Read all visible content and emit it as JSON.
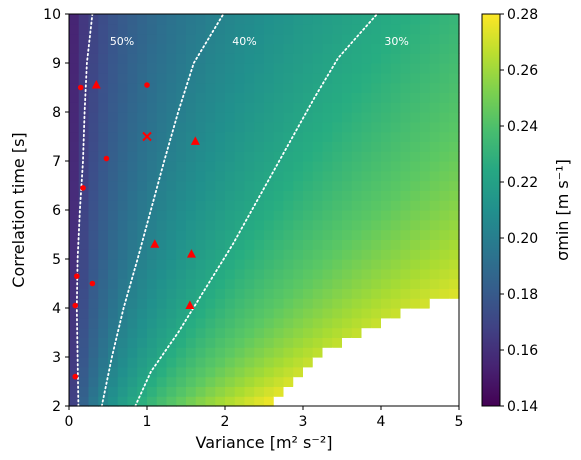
{
  "chart_data": {
    "type": "heatmap",
    "xlabel": "Variance [m² s⁻²]",
    "ylabel": "Correlation time [s]",
    "colorbar_label": "σmin [m s⁻¹]",
    "xlim": [
      0,
      5
    ],
    "ylim": [
      2,
      10
    ],
    "x_ticks": [
      "0",
      "1",
      "2",
      "3",
      "4",
      "5"
    ],
    "y_ticks": [
      "2",
      "3",
      "4",
      "5",
      "6",
      "7",
      "8",
      "9",
      "10"
    ],
    "clim": [
      0.14,
      0.28
    ],
    "colorbar_ticks": [
      "0.14",
      "0.16",
      "0.18",
      "0.20",
      "0.22",
      "0.24",
      "0.26",
      "0.28"
    ],
    "colormap": "viridis",
    "grid": {
      "x_cells": 40,
      "y_cells": 40,
      "white_region_boundary": [
        [
          5.0,
          4.3
        ],
        [
          4.2,
          3.9
        ],
        [
          3.3,
          3.1
        ],
        [
          2.5,
          2.0
        ]
      ]
    },
    "contours": [
      {
        "label": "50%",
        "color": "#ffffff",
        "style": "dotted",
        "points": [
          [
            0.12,
            2.0
          ],
          [
            0.11,
            3.0
          ],
          [
            0.1,
            4.0
          ],
          [
            0.11,
            5.0
          ],
          [
            0.14,
            6.0
          ],
          [
            0.18,
            7.0
          ],
          [
            0.2,
            8.0
          ],
          [
            0.23,
            9.0
          ],
          [
            0.3,
            10.0
          ]
        ]
      },
      {
        "label": "40%",
        "color": "#ffffff",
        "style": "dotted",
        "points": [
          [
            0.42,
            2.0
          ],
          [
            0.55,
            3.0
          ],
          [
            0.7,
            4.0
          ],
          [
            0.88,
            5.0
          ],
          [
            1.05,
            6.0
          ],
          [
            1.22,
            7.0
          ],
          [
            1.4,
            8.0
          ],
          [
            1.6,
            9.0
          ],
          [
            1.98,
            10.0
          ]
        ]
      },
      {
        "label": "30%",
        "color": "#ffffff",
        "style": "dotted",
        "points": [
          [
            0.85,
            2.0
          ],
          [
            1.05,
            2.7
          ],
          [
            1.4,
            3.5
          ],
          [
            1.75,
            4.4
          ],
          [
            2.1,
            5.3
          ],
          [
            2.45,
            6.3
          ],
          [
            2.8,
            7.3
          ],
          [
            3.15,
            8.3
          ],
          [
            3.45,
            9.1
          ],
          [
            3.95,
            10.0
          ]
        ]
      }
    ],
    "contour_label_positions": [
      {
        "label": "50%",
        "x": 0.68,
        "y": 9.45
      },
      {
        "label": "40%",
        "x": 2.25,
        "y": 9.45
      },
      {
        "label": "30%",
        "x": 4.2,
        "y": 9.45
      }
    ],
    "markers": {
      "color": "#ff0000",
      "points": [
        {
          "shape": "circle",
          "x": 0.15,
          "y": 8.5
        },
        {
          "shape": "triangle",
          "x": 0.35,
          "y": 8.55
        },
        {
          "shape": "circle",
          "x": 1.0,
          "y": 8.55
        },
        {
          "shape": "cross",
          "x": 1.0,
          "y": 7.5
        },
        {
          "shape": "triangle",
          "x": 1.62,
          "y": 7.4
        },
        {
          "shape": "circle",
          "x": 0.48,
          "y": 7.05
        },
        {
          "shape": "circle",
          "x": 0.18,
          "y": 6.45
        },
        {
          "shape": "triangle",
          "x": 1.1,
          "y": 5.3
        },
        {
          "shape": "triangle",
          "x": 1.57,
          "y": 5.1
        },
        {
          "shape": "circle",
          "x": 0.1,
          "y": 4.65
        },
        {
          "shape": "circle",
          "x": 0.3,
          "y": 4.5
        },
        {
          "shape": "circle",
          "x": 0.08,
          "y": 4.05
        },
        {
          "shape": "triangle",
          "x": 1.55,
          "y": 4.05
        },
        {
          "shape": "circle",
          "x": 0.08,
          "y": 2.6
        }
      ]
    }
  }
}
